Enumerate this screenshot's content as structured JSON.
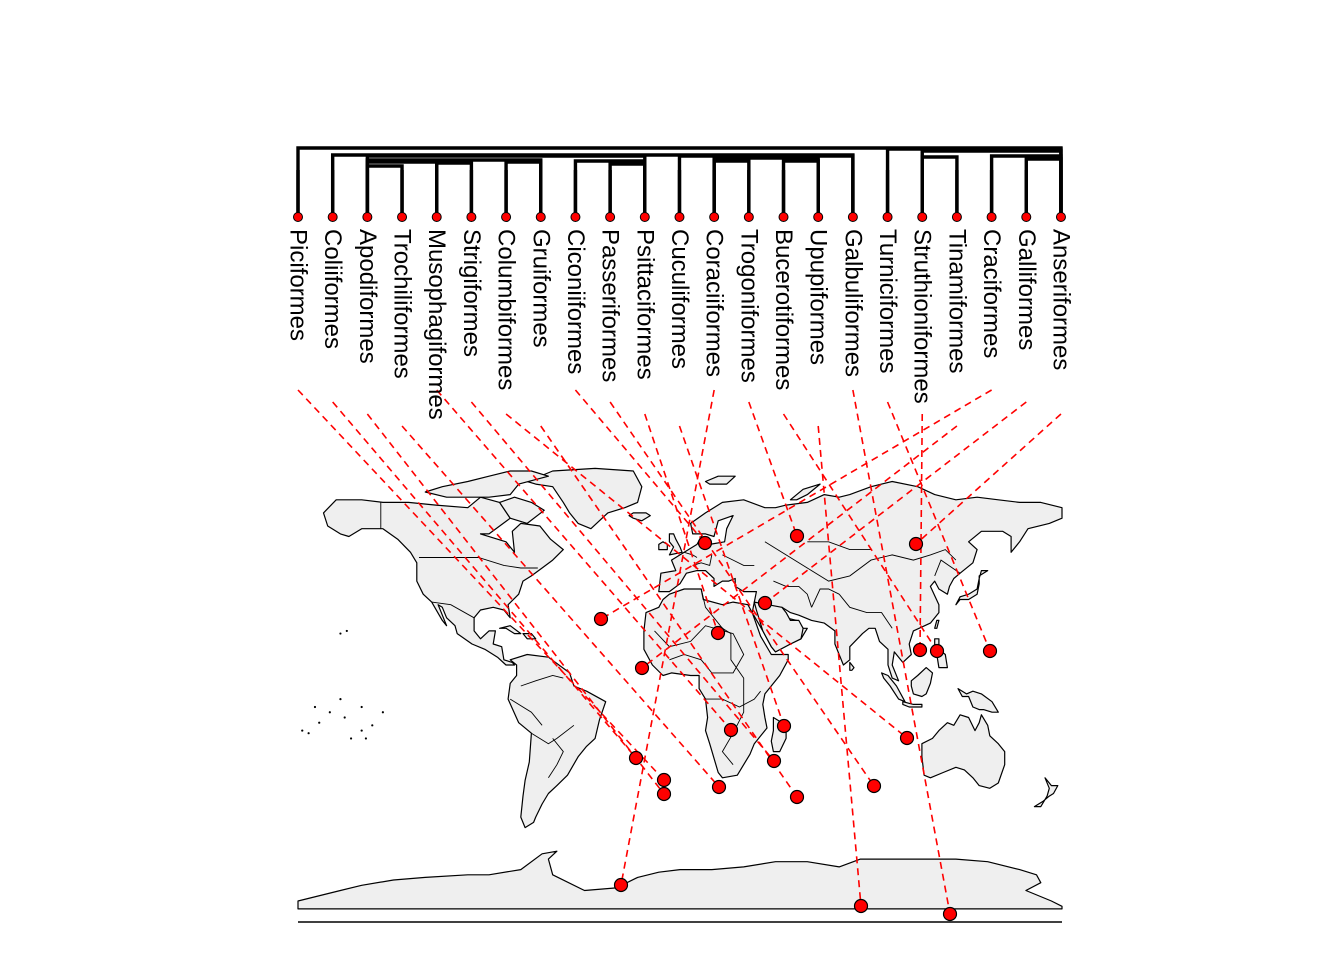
{
  "figure": {
    "tips": [
      "Piciformes",
      "Coliiformes",
      "Apodiformes",
      "Trochiliformes",
      "Musophagiformes",
      "Strigiformes",
      "Columbiformes",
      "Gruiformes",
      "Ciconiiformes",
      "Passeriformes",
      "Psittaciformes",
      "Cuculiformes",
      "Coraciiformes",
      "Trogoniformes",
      "Bucerotiformes",
      "Upupiformes",
      "Galbuliformes",
      "Turniciformes",
      "Struthioniformes",
      "Tinamiformes",
      "Craciformes",
      "Galliformes",
      "Anseriformes"
    ],
    "colors": {
      "tip_point": "#ff0000",
      "link_line": "#ff0000",
      "land_fill": "#efefef",
      "outline": "#000000",
      "tree": "#000000"
    },
    "tree_structure": "phylogeny of 23 bird orders linked by dashed lines to point locations on a world map",
    "icons": {
      "tip": "red-dot",
      "location": "red-circle-marker"
    }
  }
}
